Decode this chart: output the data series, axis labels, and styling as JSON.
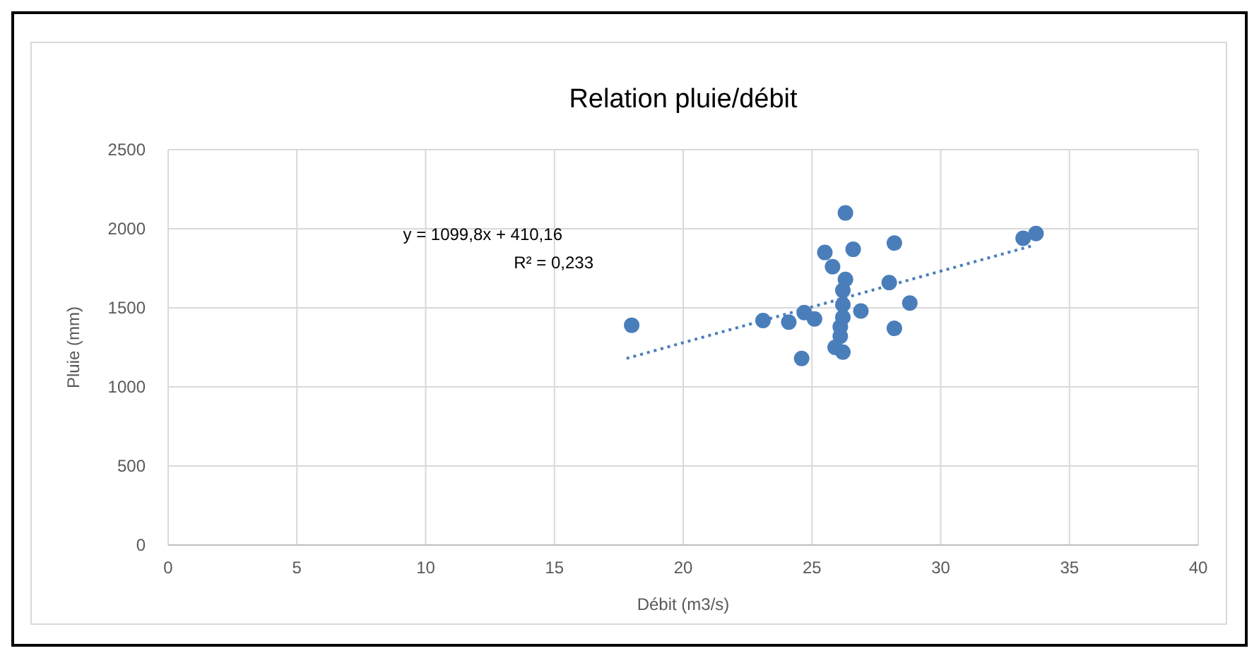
{
  "chart_data": {
    "type": "scatter",
    "title": "Relation pluie/débit",
    "xlabel": "Débit (m3/s)",
    "ylabel": "Pluie (mm)",
    "annotations": [
      "y = 1099,8x + 410,16",
      "R² = 0,233"
    ],
    "xlim": [
      0,
      40
    ],
    "xticks": [
      0,
      5,
      10,
      15,
      20,
      25,
      30,
      35,
      40
    ],
    "ylim": [
      0,
      2500
    ],
    "yticks": [
      0,
      500,
      1000,
      1500,
      2000,
      2500
    ],
    "grid": true,
    "series": [
      {
        "color": "#4a7ebb",
        "marker": "circle",
        "x": [
          18.0,
          23.1,
          24.1,
          24.6,
          24.7,
          25.1,
          26.3,
          25.5,
          26.6,
          28.2,
          25.8,
          26.3,
          26.2,
          28.0,
          28.8,
          26.9,
          26.2,
          26.2,
          26.1,
          26.1,
          25.9,
          26.2,
          28.2,
          33.2,
          33.7
        ],
        "values": [
          1390,
          1420,
          1410,
          1180,
          1470,
          1430,
          2100,
          1850,
          1870,
          1910,
          1760,
          1680,
          1610,
          1660,
          1530,
          1480,
          1520,
          1440,
          1380,
          1320,
          1250,
          1220,
          1370,
          1940,
          1970
        ]
      },
      {
        "type": "line",
        "color": "#4a7ebb",
        "line_style": "dotted",
        "marker": "none",
        "x": [
          17.8,
          33.5
        ],
        "values": [
          1180,
          1890
        ]
      }
    ]
  }
}
